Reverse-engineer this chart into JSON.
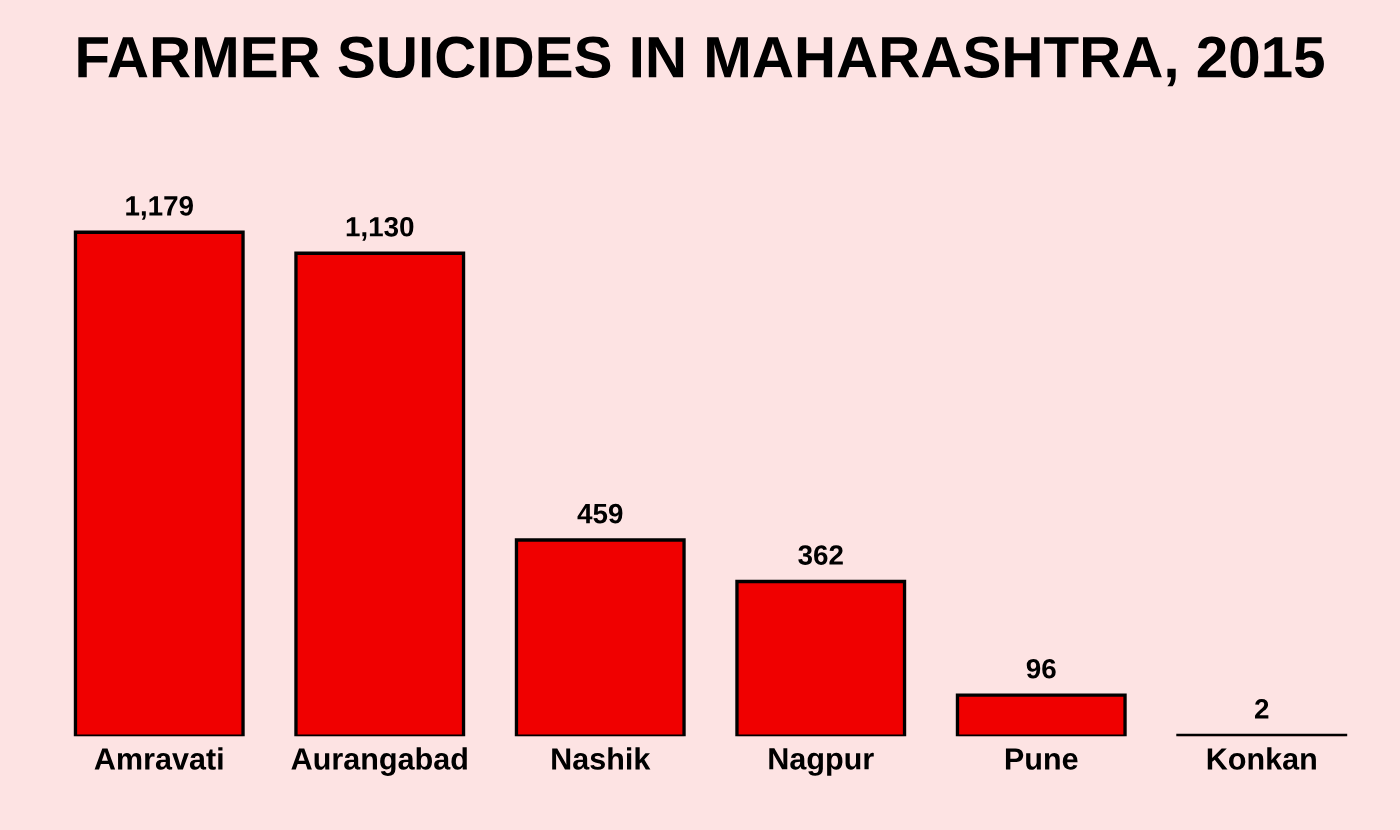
{
  "chart_data": {
    "type": "bar",
    "title": "FARMER SUICIDES IN MAHARASHTRA, 2015",
    "categories": [
      "Amravati",
      "Aurangabad",
      "Nashik",
      "Nagpur",
      "Pune",
      "Konkan"
    ],
    "values": [
      1179,
      1130,
      459,
      362,
      96,
      2
    ],
    "value_labels": [
      "1,179",
      "1,130",
      "459",
      "362",
      "96",
      "2"
    ],
    "color": "#f00000",
    "grid": false
  }
}
